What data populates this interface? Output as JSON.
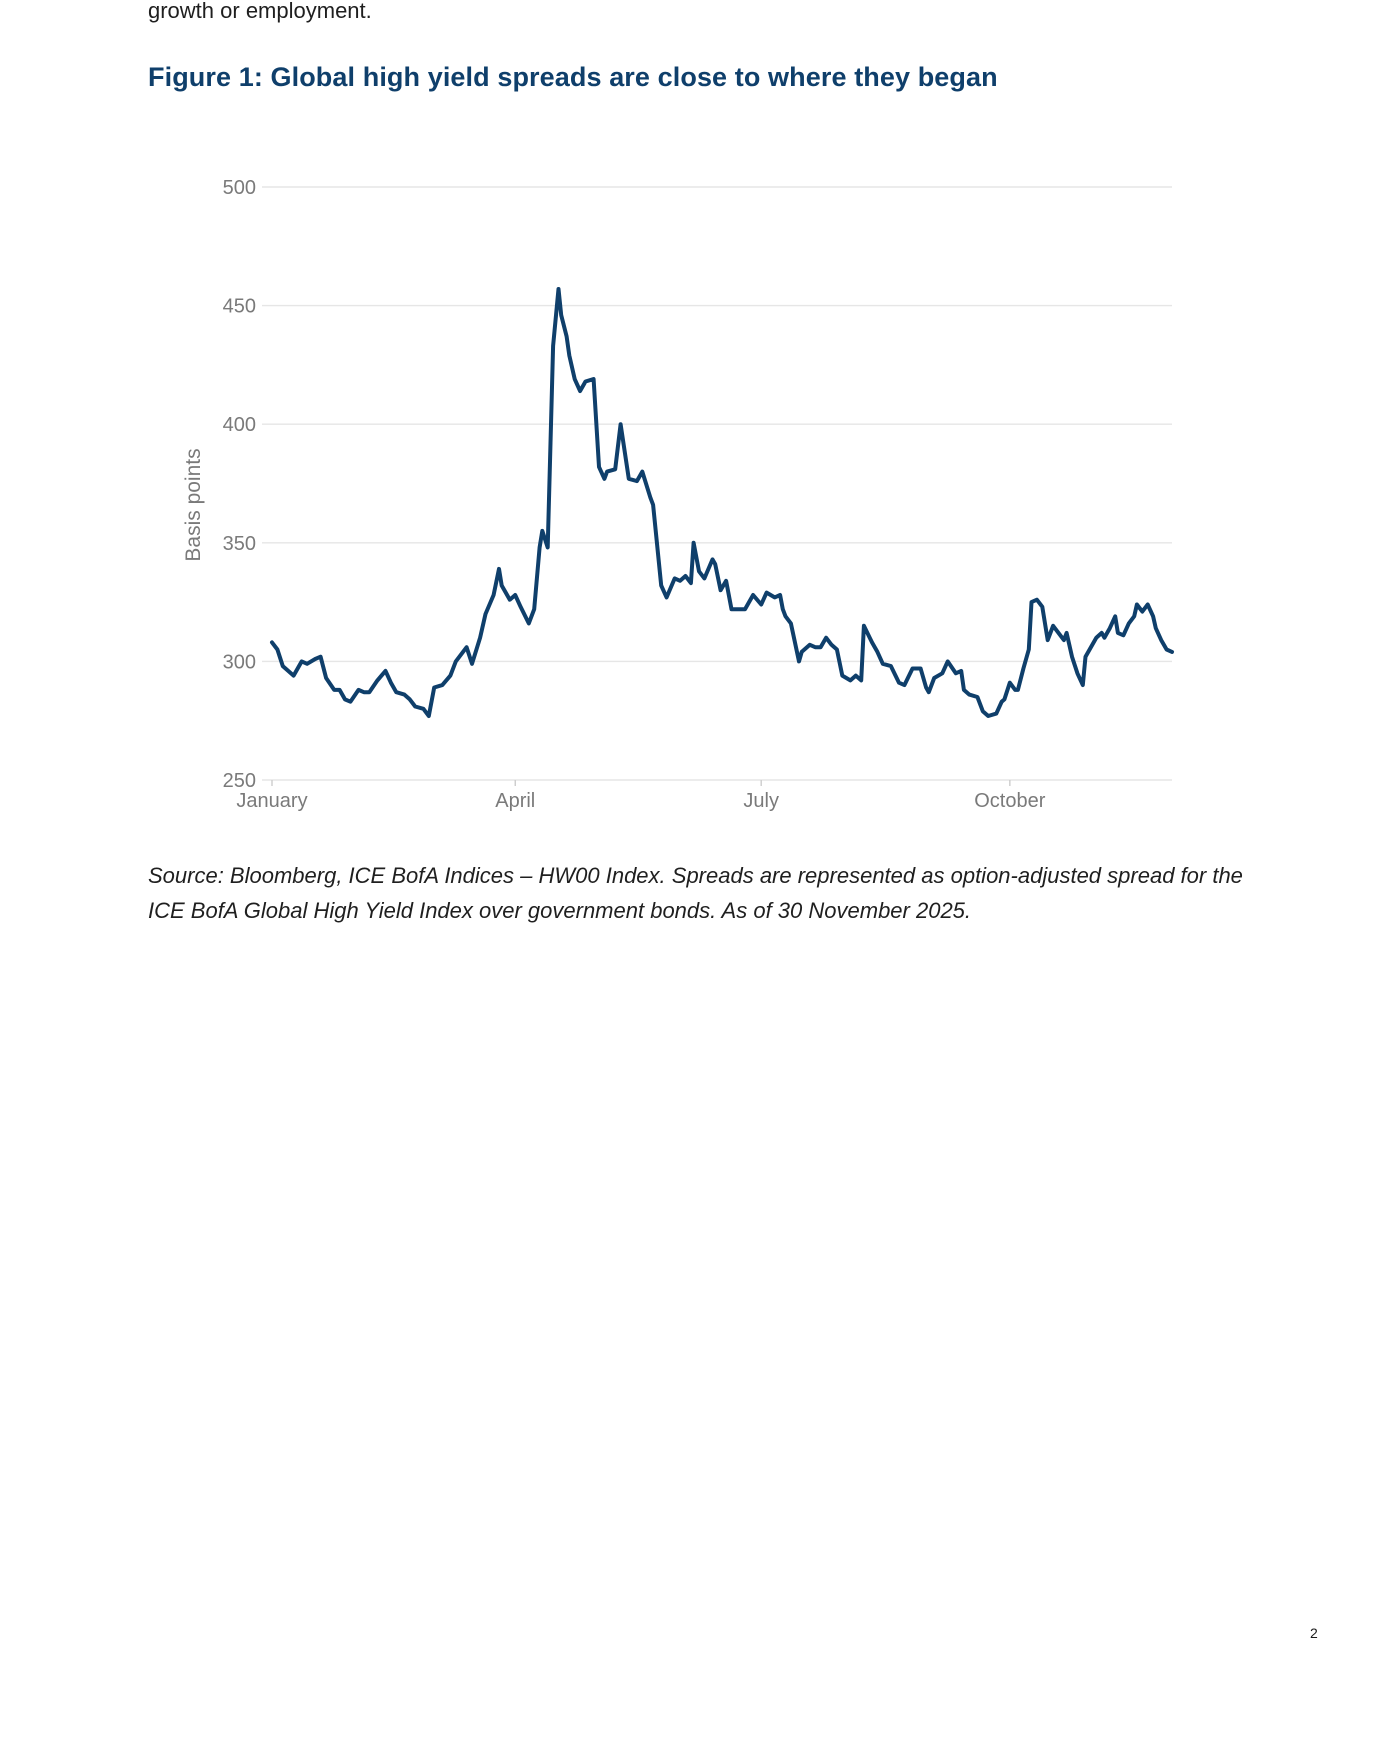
{
  "intro_text": "growth or employment.",
  "figure_title": "Figure 1: Global high yield spreads are close to where they began",
  "source_text": "Source: Bloomberg, ICE BofA Indices – HW00 Index. Spreads are represented as option-adjusted spread for the ICE BofA Global High Yield Index over government bonds. As of 30 November 2025.",
  "page_number": "2",
  "colors": {
    "line": "#0f3f6b",
    "title": "#0f3f6b",
    "grid": "#e6e6e6",
    "tick_text": "#7a7a7a"
  },
  "chart_data": {
    "type": "line",
    "title": "",
    "xlabel": "",
    "ylabel": "Basis points",
    "ylim": [
      250,
      500
    ],
    "yticks": [
      250,
      300,
      350,
      400,
      450,
      500
    ],
    "xlim": [
      1,
      334
    ],
    "xticks": [
      {
        "label": "January",
        "day": 1
      },
      {
        "label": "April",
        "day": 91
      },
      {
        "label": "July",
        "day": 182
      },
      {
        "label": "October",
        "day": 274
      }
    ],
    "grid": true,
    "legend": "none",
    "series": [
      {
        "x": [
          1,
          3,
          5,
          9,
          12,
          14,
          17,
          19,
          21,
          24,
          26,
          28,
          30,
          33,
          35,
          37,
          40,
          43,
          45,
          47,
          50,
          52,
          54,
          57,
          59,
          61,
          64,
          67,
          69,
          71,
          73,
          75,
          78,
          80,
          83,
          85,
          86,
          89,
          91,
          93,
          96,
          98,
          100,
          101,
          103,
          105,
          107,
          108,
          110,
          111,
          113,
          115,
          117,
          120,
          122,
          124,
          125,
          128,
          130,
          133,
          136,
          138,
          141,
          142,
          145,
          147,
          150,
          152,
          154,
          156,
          157,
          159,
          161,
          164,
          165,
          167,
          169,
          171,
          174,
          176,
          177,
          179,
          182,
          184,
          187,
          189,
          190,
          191,
          193,
          196,
          197,
          198,
          200,
          202,
          204,
          206,
          208,
          210,
          212,
          215,
          217,
          219,
          220,
          223,
          225,
          227,
          230,
          233,
          235,
          238,
          241,
          243,
          244,
          246,
          249,
          251,
          254,
          256,
          257,
          259,
          262,
          264,
          266,
          269,
          271,
          272,
          274,
          276,
          277,
          279,
          281,
          282,
          284,
          286,
          288,
          290,
          292,
          294,
          295,
          297,
          299,
          301,
          302,
          304,
          306,
          308,
          309,
          311,
          313,
          314,
          316,
          318,
          320,
          321,
          323,
          325,
          327,
          328,
          330,
          332,
          334
        ],
        "y": [
          308,
          305,
          298,
          294,
          300,
          299,
          301,
          302,
          293,
          288,
          288,
          284,
          283,
          288,
          287,
          287,
          292,
          296,
          291,
          287,
          286,
          284,
          281,
          280,
          277,
          289,
          290,
          294,
          300,
          303,
          306,
          299,
          310,
          320,
          328,
          339,
          332,
          326,
          328,
          323,
          316,
          322,
          348,
          355,
          348,
          433,
          457,
          446,
          437,
          429,
          419,
          414,
          418,
          419,
          382,
          377,
          380,
          381,
          400,
          377,
          376,
          380,
          369,
          366,
          332,
          327,
          335,
          334,
          336,
          333,
          350,
          338,
          335,
          343,
          341,
          330,
          334,
          322,
          322,
          322,
          324,
          328,
          324,
          329,
          327,
          328,
          322,
          319,
          316,
          300,
          304,
          305,
          307,
          306,
          306,
          310,
          307,
          305,
          294,
          292,
          294,
          292,
          315,
          308,
          304,
          299,
          298,
          291,
          290,
          297,
          297,
          289,
          287,
          293,
          295,
          300,
          295,
          296,
          288,
          286,
          285,
          279,
          277,
          278,
          283,
          284,
          291,
          288,
          288,
          297,
          305,
          325,
          326,
          323,
          309,
          315,
          312,
          309,
          312,
          302,
          295,
          290,
          302,
          306,
          310,
          312,
          310,
          314,
          319,
          312,
          311,
          316,
          319,
          324,
          321,
          324,
          319,
          314,
          309,
          305,
          304
        ]
      }
    ]
  }
}
